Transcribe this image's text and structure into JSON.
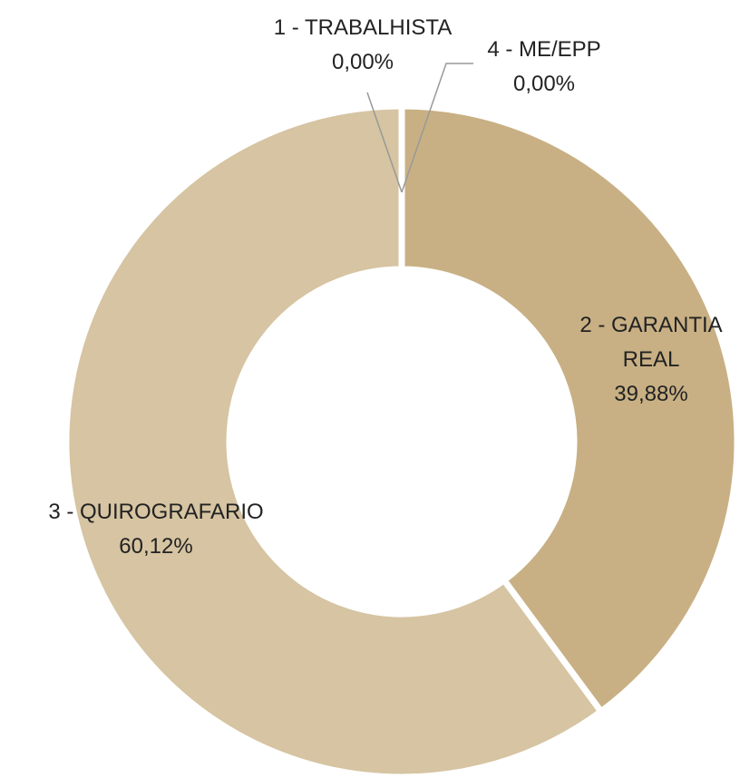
{
  "chart_data": {
    "type": "donut",
    "categories": [
      "1 - TRABALHISTA",
      "2 - GARANTIA REAL",
      "3 - QUIROGRAFARIO",
      "4 - ME/EPP"
    ],
    "values": [
      0,
      39.88,
      60.12,
      0
    ],
    "value_labels": [
      "0,00%",
      "39,88%",
      "60,12%",
      "0,00%"
    ],
    "colors": [
      "#d6c4a2",
      "#c8b084",
      "#d6c4a2",
      "#c8b084"
    ]
  }
}
